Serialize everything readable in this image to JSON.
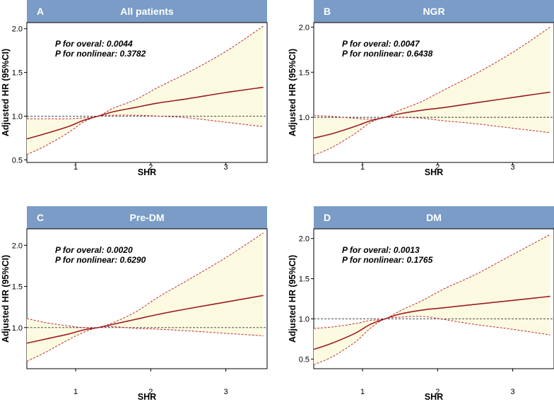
{
  "figure": {
    "panels": [
      {
        "letter": "A",
        "title": "All patients",
        "p_overall": "P for overal: 0.0044",
        "p_nonlinear": "P for nonlinear: 0.3782"
      },
      {
        "letter": "B",
        "title": "NGR",
        "p_overall": "P for overal: 0.0047",
        "p_nonlinear": "P for nonlinear: 0.6438"
      },
      {
        "letter": "C",
        "title": "Pre-DM",
        "p_overall": "P for overal: 0.0020",
        "p_nonlinear": "P for nonlinear: 0.6290"
      },
      {
        "letter": "D",
        "title": "DM",
        "p_overall": "P for overal: 0.0013",
        "p_nonlinear": "P for nonlinear: 0.1765"
      }
    ]
  },
  "chart_data": [
    {
      "type": "line",
      "panel": "A",
      "title": "All patients",
      "xlabel": "SHR",
      "ylabel": "Adjusted HR (95%CI)",
      "xlim": [
        0.35,
        3.55
      ],
      "ylim": [
        0.47,
        2.07
      ],
      "xticks": [
        1,
        2,
        3
      ],
      "yticks": [
        0.5,
        1.0,
        1.5,
        2.0
      ],
      "ytick_labels": [
        "0.5",
        "1.0",
        "1.5",
        "2.0"
      ],
      "reference_line": 1.0,
      "x": [
        0.35,
        0.6,
        0.9,
        1.1,
        1.3,
        1.5,
        1.8,
        2.1,
        2.5,
        3.0,
        3.5
      ],
      "hr": [
        0.74,
        0.8,
        0.88,
        0.95,
        1.0,
        1.05,
        1.1,
        1.15,
        1.2,
        1.27,
        1.33
      ],
      "lower": [
        0.56,
        0.66,
        0.81,
        0.93,
        1.0,
        1.01,
        1.01,
        1.0,
        0.98,
        0.93,
        0.88
      ],
      "upper": [
        0.97,
        0.97,
        0.97,
        0.98,
        1.0,
        1.09,
        1.19,
        1.33,
        1.5,
        1.74,
        2.03
      ]
    },
    {
      "type": "line",
      "panel": "B",
      "title": "NGR",
      "xlabel": "SHR",
      "ylabel": "Adjusted HR (95%CI)",
      "xlim": [
        0.35,
        3.55
      ],
      "ylim": [
        0.5,
        2.05
      ],
      "xticks": [
        1,
        2,
        3
      ],
      "yticks": [
        1.0,
        1.5,
        2.0
      ],
      "ytick_labels": [
        "1.0",
        "1.5",
        "2.0"
      ],
      "reference_line": 1.0,
      "x": [
        0.35,
        0.6,
        0.9,
        1.1,
        1.3,
        1.5,
        1.8,
        2.1,
        2.5,
        3.0,
        3.5
      ],
      "hr": [
        0.77,
        0.82,
        0.9,
        0.96,
        1.0,
        1.04,
        1.08,
        1.11,
        1.16,
        1.22,
        1.28
      ],
      "lower": [
        0.58,
        0.67,
        0.82,
        0.94,
        1.0,
        1.0,
        0.99,
        0.96,
        0.93,
        0.88,
        0.83
      ],
      "upper": [
        1.02,
        1.01,
        0.99,
        0.98,
        1.0,
        1.08,
        1.18,
        1.31,
        1.48,
        1.72,
        2.0
      ]
    },
    {
      "type": "line",
      "panel": "C",
      "title": "Pre-DM",
      "xlabel": "SHR",
      "ylabel": "Adjusted HR (95%CI)",
      "xlim": [
        0.35,
        3.55
      ],
      "ylim": [
        0.5,
        2.2
      ],
      "xticks": [
        1,
        2,
        3
      ],
      "yticks": [
        1.0,
        1.5,
        2.0
      ],
      "ytick_labels": [
        "1.0",
        "1.5",
        "2.0"
      ],
      "reference_line": 1.0,
      "x": [
        0.35,
        0.6,
        0.9,
        1.1,
        1.3,
        1.5,
        1.8,
        2.1,
        2.5,
        3.0,
        3.5
      ],
      "hr": [
        0.81,
        0.86,
        0.92,
        0.97,
        1.0,
        1.04,
        1.1,
        1.16,
        1.23,
        1.31,
        1.39
      ],
      "lower": [
        0.59,
        0.7,
        0.85,
        0.94,
        1.0,
        1.01,
        0.99,
        0.98,
        0.96,
        0.93,
        0.9
      ],
      "upper": [
        1.11,
        1.06,
        1.02,
        1.0,
        1.0,
        1.06,
        1.19,
        1.37,
        1.58,
        1.85,
        2.15
      ]
    },
    {
      "type": "line",
      "panel": "D",
      "title": "DM",
      "xlabel": "SHR",
      "ylabel": "Adjusted HR (95%CI)",
      "xlim": [
        0.35,
        3.55
      ],
      "ylim": [
        0.38,
        2.12
      ],
      "xticks": [
        1,
        2,
        3
      ],
      "yticks": [
        0.5,
        1.0,
        1.5,
        2.0
      ],
      "ytick_labels": [
        "0.5",
        "1.0",
        "1.5",
        "2.0"
      ],
      "reference_line": 1.0,
      "x": [
        0.35,
        0.6,
        0.9,
        1.1,
        1.3,
        1.5,
        1.8,
        2.1,
        2.5,
        3.0,
        3.5
      ],
      "hr": [
        0.62,
        0.7,
        0.82,
        0.93,
        1.0,
        1.06,
        1.11,
        1.14,
        1.18,
        1.23,
        1.28
      ],
      "lower": [
        0.43,
        0.53,
        0.71,
        0.88,
        1.0,
        1.02,
        1.03,
        0.99,
        0.93,
        0.87,
        0.8
      ],
      "upper": [
        0.88,
        0.9,
        0.94,
        0.98,
        1.0,
        1.1,
        1.23,
        1.38,
        1.55,
        1.8,
        2.05
      ]
    }
  ]
}
